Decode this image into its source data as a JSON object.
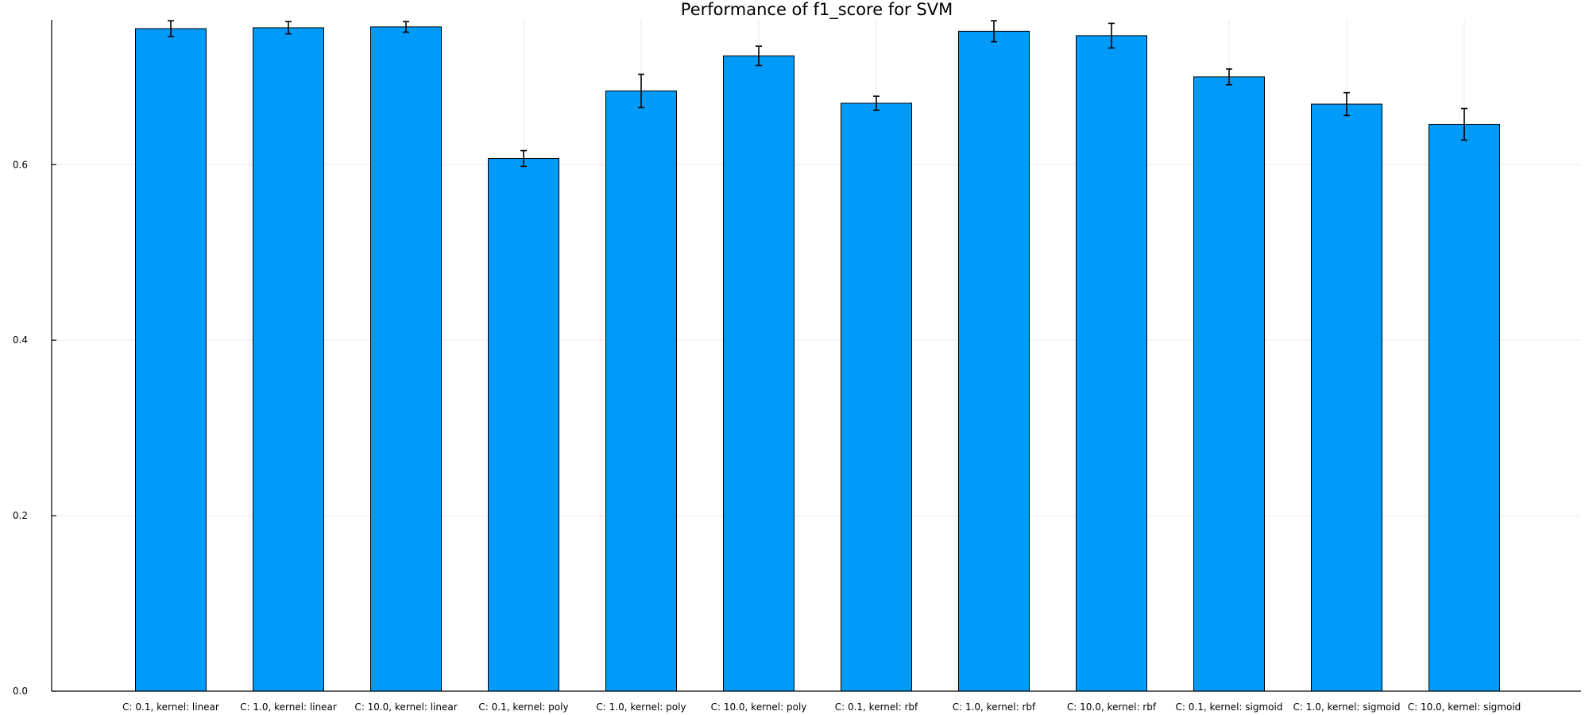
{
  "chart_data": {
    "type": "bar",
    "title": "Performance of f1_score for SVM",
    "xlabel": "",
    "ylabel": "",
    "categories": [
      "C: 0.1, kernel: linear",
      "C: 1.0, kernel: linear",
      "C: 10.0, kernel: linear",
      "C: 0.1, kernel: poly",
      "C: 1.0, kernel: poly",
      "C: 10.0, kernel: poly",
      "C: 0.1, kernel: rbf",
      "C: 1.0, kernel: rbf",
      "C: 10.0, kernel: rbf",
      "C: 0.1, kernel: sigmoid",
      "C: 1.0, kernel: sigmoid",
      "C: 10.0, kernel: sigmoid"
    ],
    "values": [
      0.755,
      0.756,
      0.757,
      0.607,
      0.684,
      0.724,
      0.67,
      0.752,
      0.747,
      0.7,
      0.669,
      0.646
    ],
    "errors": [
      0.009,
      0.007,
      0.006,
      0.009,
      0.019,
      0.011,
      0.008,
      0.012,
      0.014,
      0.009,
      0.013,
      0.018
    ],
    "ylim": [
      0,
      0.765
    ],
    "yticks": [
      0.0,
      0.2,
      0.4,
      0.6
    ],
    "ytick_labels": [
      "0.0",
      "0.2",
      "0.4",
      "0.6"
    ],
    "grid": true,
    "legend": "none",
    "colors": {
      "bar": "#009af9",
      "error_bar": "#000000"
    }
  }
}
